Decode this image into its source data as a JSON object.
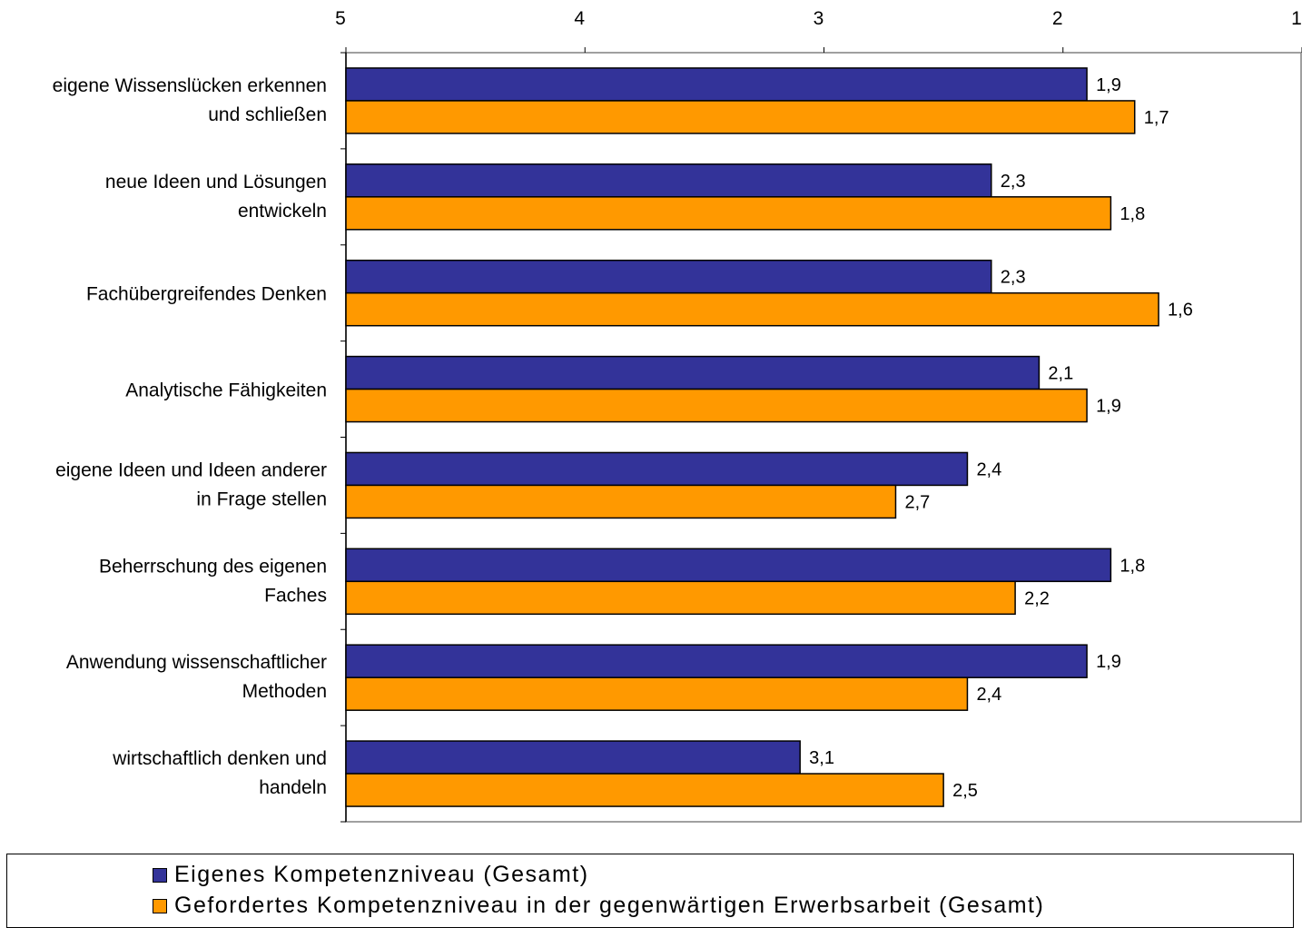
{
  "chart_data": {
    "type": "bar",
    "orientation": "horizontal",
    "xlim": [
      5,
      1
    ],
    "x_reversed": true,
    "ticks": [
      "5",
      "4",
      "3",
      "2",
      "1"
    ],
    "tick_values": [
      5,
      4,
      3,
      2,
      1
    ],
    "categories": [
      [
        "eigene Wissenslücken erkennen",
        "und schließen"
      ],
      [
        "neue Ideen und Lösungen",
        "entwickeln"
      ],
      [
        "Fachübergreifendes Denken"
      ],
      [
        "Analytische Fähigkeiten"
      ],
      [
        "eigene Ideen und Ideen anderer",
        "in Frage stellen"
      ],
      [
        "Beherrschung des eigenen",
        "Faches"
      ],
      [
        "Anwendung wissenschaftlicher",
        "Methoden"
      ],
      [
        "wirtschaftlich denken und",
        "handeln"
      ]
    ],
    "series": [
      {
        "name": "Eigenes Kompetenzniveau (Gesamt)",
        "color": "#333399",
        "values": [
          1.9,
          2.3,
          2.3,
          2.1,
          2.4,
          1.8,
          1.9,
          3.1
        ],
        "labels": [
          "1,9",
          "2,3",
          "2,3",
          "2,1",
          "2,4",
          "1,8",
          "1,9",
          "3,1"
        ]
      },
      {
        "name": "Gefordertes Kompetenzniveau in der gegenwärtigen Erwerbsarbeit (Gesamt)",
        "color": "#FF9900",
        "values": [
          1.7,
          1.8,
          1.6,
          1.9,
          2.7,
          2.2,
          2.4,
          2.5
        ],
        "labels": [
          "1,7",
          "1,8",
          "1,6",
          "1,9",
          "2,7",
          "2,2",
          "2,4",
          "2,5"
        ]
      }
    ],
    "grid": false,
    "legend_position": "bottom"
  },
  "legend": {
    "item1": "Eigenes Kompetenzniveau (Gesamt)",
    "item2": "Gefordertes Kompetenzniveau in der gegenwärtigen Erwerbsarbeit (Gesamt)"
  }
}
